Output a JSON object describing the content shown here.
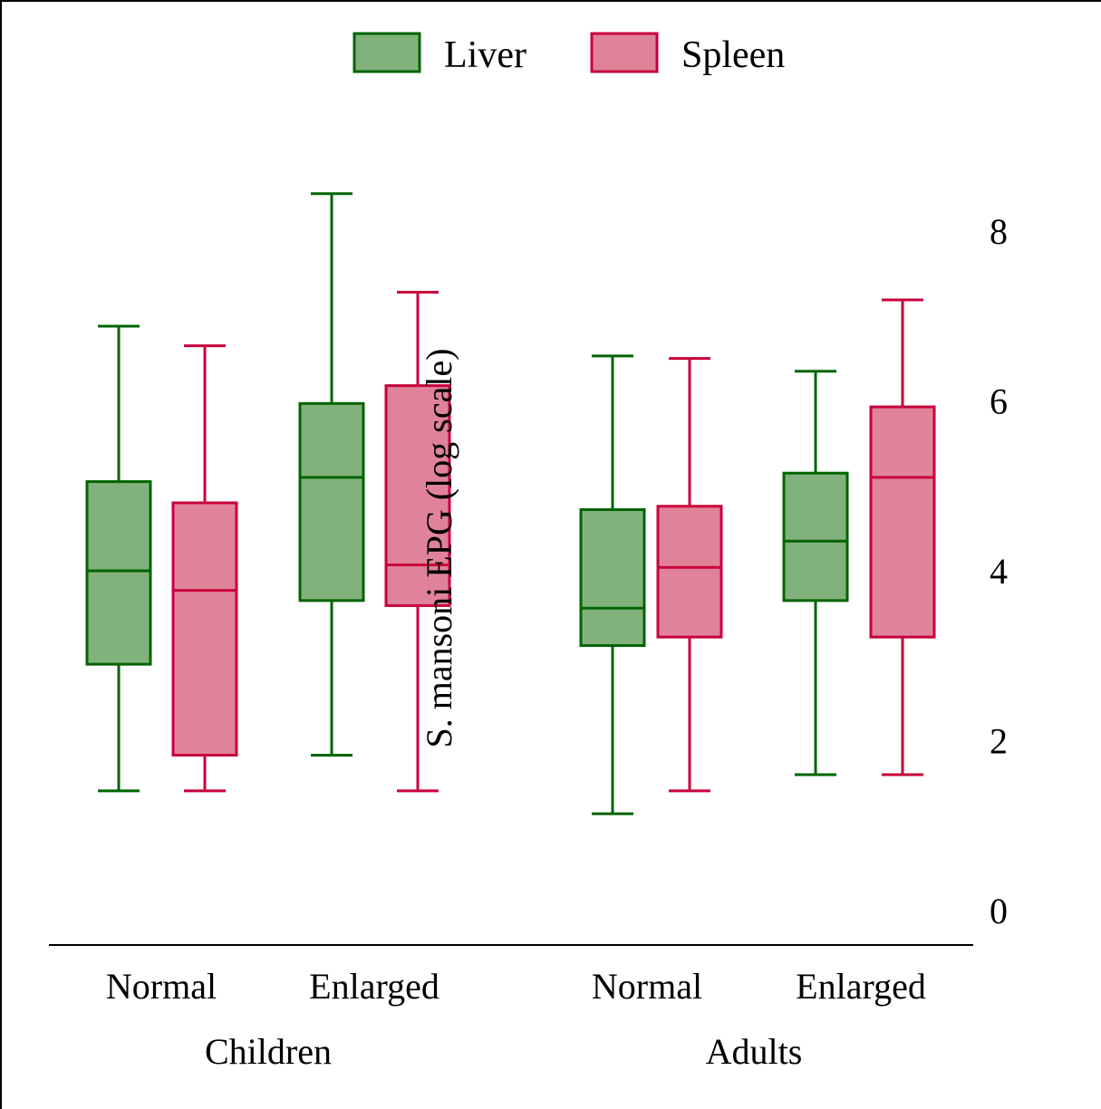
{
  "chart_data": {
    "type": "boxplot",
    "ylabel": "S. mansoni EPG (log scale)",
    "ylim": [
      0,
      9
    ],
    "yticks": [
      0,
      2,
      4,
      6,
      8
    ],
    "legend": {
      "position": "top",
      "entries": [
        "Liver",
        "Spleen"
      ]
    },
    "grid": false,
    "series": [
      {
        "name": "Liver",
        "color": "#006400",
        "fill": "#82b27c"
      },
      {
        "name": "Spleen",
        "color": "#c8003c",
        "fill": "#e0839a"
      }
    ],
    "groups": [
      {
        "label": "Children",
        "categories": [
          "Normal",
          "Enlarged"
        ]
      },
      {
        "label": "Adults",
        "categories": [
          "Normal",
          "Enlarged"
        ]
      }
    ],
    "boxes": [
      {
        "group": "Children",
        "category": "Normal",
        "series": "Liver",
        "whisker_low": 1.41,
        "q1": 2.9,
        "median": 4.0,
        "q3": 5.05,
        "whisker_high": 6.88
      },
      {
        "group": "Children",
        "category": "Normal",
        "series": "Spleen",
        "whisker_low": 1.41,
        "q1": 1.83,
        "median": 3.77,
        "q3": 4.8,
        "whisker_high": 6.65
      },
      {
        "group": "Children",
        "category": "Enlarged",
        "series": "Liver",
        "whisker_low": 1.83,
        "q1": 3.65,
        "median": 5.1,
        "q3": 5.97,
        "whisker_high": 8.44
      },
      {
        "group": "Children",
        "category": "Enlarged",
        "series": "Spleen",
        "whisker_low": 1.41,
        "q1": 3.59,
        "median": 4.07,
        "q3": 6.18,
        "whisker_high": 7.28
      },
      {
        "group": "Adults",
        "category": "Normal",
        "series": "Liver",
        "whisker_low": 1.14,
        "q1": 3.12,
        "median": 3.56,
        "q3": 4.72,
        "whisker_high": 6.53
      },
      {
        "group": "Adults",
        "category": "Normal",
        "series": "Spleen",
        "whisker_low": 1.41,
        "q1": 3.22,
        "median": 4.04,
        "q3": 4.76,
        "whisker_high": 6.5
      },
      {
        "group": "Adults",
        "category": "Enlarged",
        "series": "Liver",
        "whisker_low": 1.6,
        "q1": 3.65,
        "median": 4.35,
        "q3": 5.15,
        "whisker_high": 6.35
      },
      {
        "group": "Adults",
        "category": "Enlarged",
        "series": "Spleen",
        "whisker_low": 1.6,
        "q1": 3.22,
        "median": 5.1,
        "q3": 5.93,
        "whisker_high": 7.19
      }
    ]
  }
}
